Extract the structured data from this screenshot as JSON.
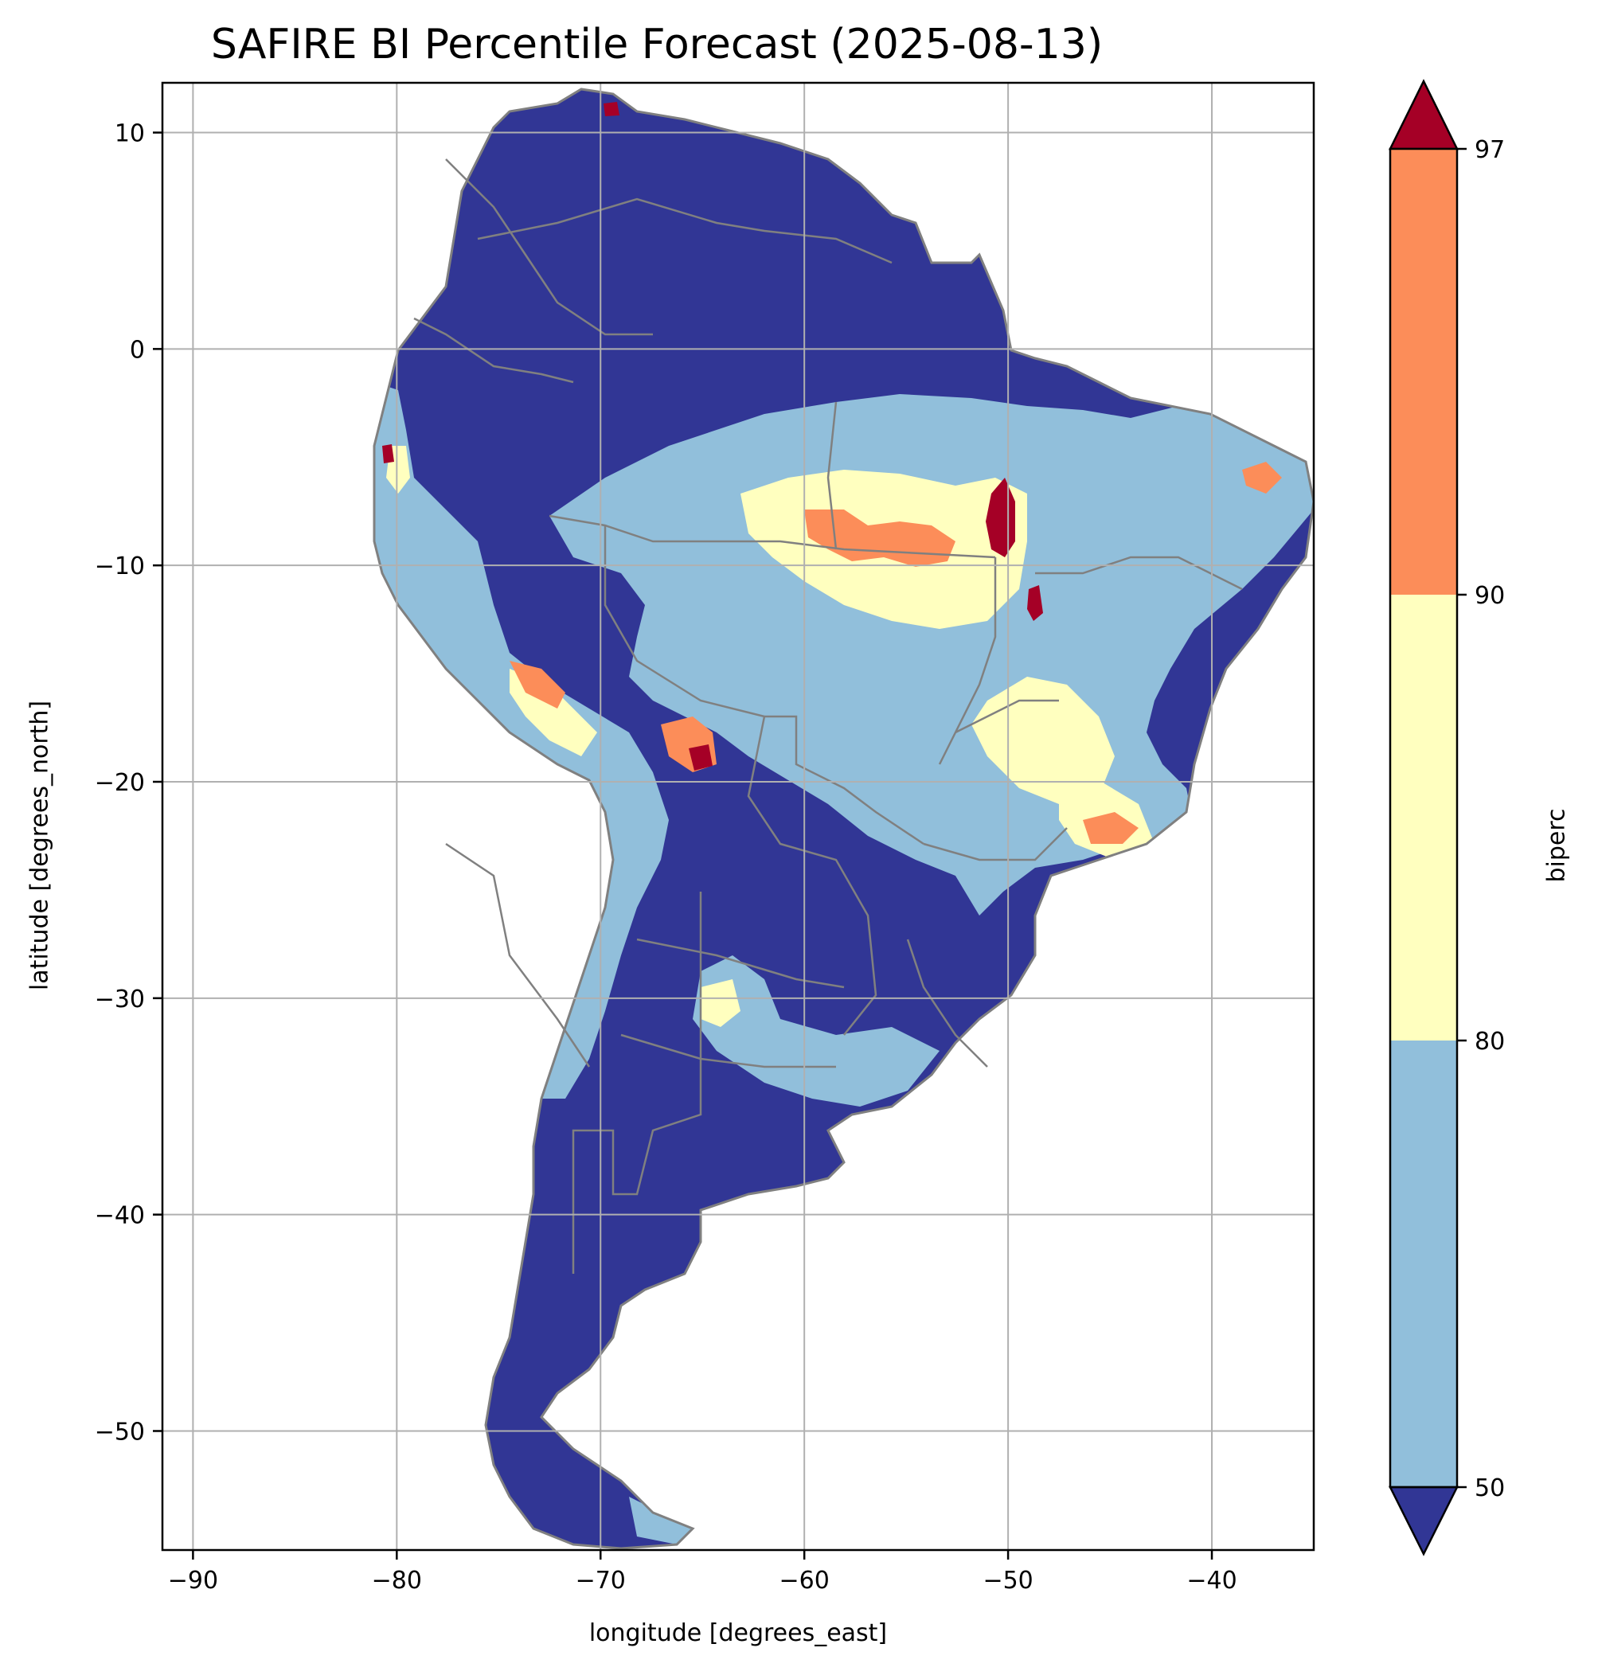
{
  "title": "SAFIRE BI Percentile Forecast (2025-08-13)",
  "xlabel": "longitude [degrees_east]",
  "ylabel": "latitude [degrees_north]",
  "colorbar": {
    "label": "biperc",
    "ticks": [
      "97",
      "90",
      "80",
      "50"
    ],
    "colors": {
      "below_50": "#313695",
      "50_80": "#91bfdb",
      "80_90": "#ffffbf",
      "90_97": "#fc8d59",
      "above_97": "#a50026"
    }
  },
  "chart_data": {
    "type": "heatmap",
    "x_ticks": [
      "−90",
      "−80",
      "−70",
      "−60",
      "−50",
      "−40"
    ],
    "y_ticks": [
      "10",
      "0",
      "−10",
      "−20",
      "−30",
      "−40",
      "−50"
    ],
    "xlim": [
      -91.5,
      -35
    ],
    "ylim": [
      -55.5,
      12.3
    ],
    "grid": true,
    "coastline_color": "#808080"
  }
}
